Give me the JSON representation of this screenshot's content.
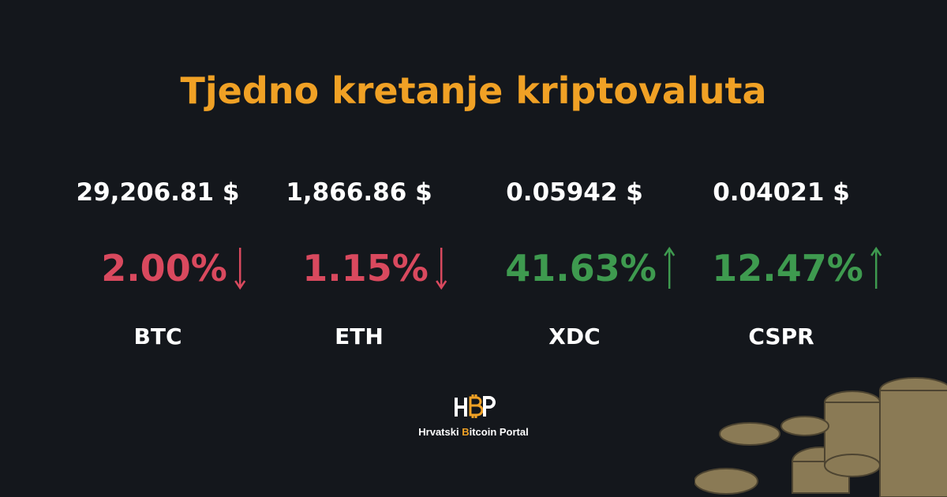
{
  "title": "Tjedno kretanje kriptovaluta",
  "coins": [
    {
      "price": "29,206.81 $",
      "change": "2.00%",
      "symbol": "BTC",
      "trend": "down"
    },
    {
      "price": "1,866.86 $",
      "change": "1.15%",
      "symbol": "ETH",
      "trend": "down"
    },
    {
      "price": "0.05942 $",
      "change": "41.63%",
      "symbol": "XDC",
      "trend": "up"
    },
    {
      "price": "0.04021 $",
      "change": "12.47%",
      "symbol": "CSPR",
      "trend": "up"
    }
  ],
  "logo": {
    "words": [
      "Hrvatski",
      "Bitcoin",
      "Portal"
    ]
  }
}
